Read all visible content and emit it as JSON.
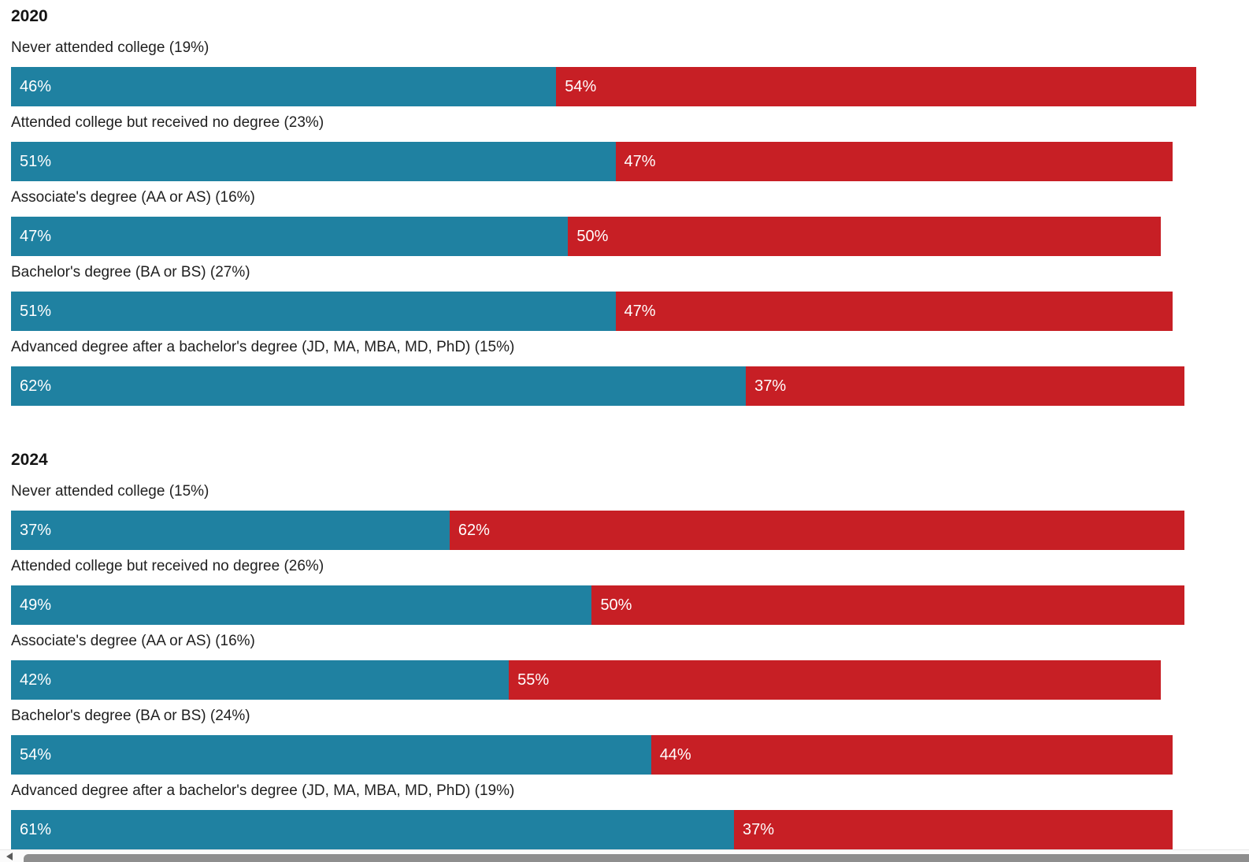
{
  "colors": {
    "blue_bar": "#1f81a1",
    "red_bar": "#c71f25",
    "text": "#1f1f1f",
    "value_text": "#ffffff",
    "scroll_track": "#fbfbfb",
    "scroll_thumb": "#8e8e8e"
  },
  "groups": [
    {
      "year": "2020",
      "rows": [
        {
          "label": "Never attended college (19%)",
          "blue_pct": 46,
          "red_pct": 54,
          "blue_label": "46%",
          "red_label": "54%"
        },
        {
          "label": "Attended college but received no degree (23%)",
          "blue_pct": 51,
          "red_pct": 47,
          "blue_label": "51%",
          "red_label": "47%"
        },
        {
          "label": "Associate's degree (AA or AS) (16%)",
          "blue_pct": 47,
          "red_pct": 50,
          "blue_label": "47%",
          "red_label": "50%"
        },
        {
          "label": "Bachelor's degree (BA or BS) (27%)",
          "blue_pct": 51,
          "red_pct": 47,
          "blue_label": "51%",
          "red_label": "47%"
        },
        {
          "label": "Advanced degree after a bachelor's degree (JD, MA, MBA, MD, PhD) (15%)",
          "blue_pct": 62,
          "red_pct": 37,
          "blue_label": "62%",
          "red_label": "37%"
        }
      ]
    },
    {
      "year": "2024",
      "rows": [
        {
          "label": "Never attended college (15%)",
          "blue_pct": 37,
          "red_pct": 62,
          "blue_label": "37%",
          "red_label": "62%"
        },
        {
          "label": "Attended college but received no degree (26%)",
          "blue_pct": 49,
          "red_pct": 50,
          "blue_label": "49%",
          "red_label": "50%"
        },
        {
          "label": "Associate's degree (AA or AS) (16%)",
          "blue_pct": 42,
          "red_pct": 55,
          "blue_label": "42%",
          "red_label": "55%"
        },
        {
          "label": "Bachelor's degree (BA or BS) (24%)",
          "blue_pct": 54,
          "red_pct": 44,
          "blue_label": "54%",
          "red_label": "44%"
        },
        {
          "label": "Advanced degree after a bachelor's degree (JD, MA, MBA, MD, PhD) (19%)",
          "blue_pct": 61,
          "red_pct": 37,
          "blue_label": "61%",
          "red_label": "37%"
        }
      ]
    }
  ],
  "chart_data": [
    {
      "type": "bar",
      "orientation": "horizontal",
      "stacked": true,
      "title": "2020",
      "categories": [
        "Never attended college (19%)",
        "Attended college but received no degree (23%)",
        "Associate's degree (AA or AS) (16%)",
        "Bachelor's degree (BA or BS) (27%)",
        "Advanced degree after a bachelor's degree (JD, MA, MBA, MD, PhD) (15%)"
      ],
      "series": [
        {
          "name": "blue",
          "color": "#1f81a1",
          "values": [
            46,
            51,
            47,
            51,
            62
          ]
        },
        {
          "name": "red",
          "color": "#c71f25",
          "values": [
            54,
            47,
            50,
            47,
            37
          ]
        }
      ],
      "xlim": [
        0,
        100
      ],
      "grid": false,
      "legend": "none",
      "value_labels": "inside-start of each segment, white text with % suffix"
    },
    {
      "type": "bar",
      "orientation": "horizontal",
      "stacked": true,
      "title": "2024",
      "categories": [
        "Never attended college (15%)",
        "Attended college but received no degree (26%)",
        "Associate's degree (AA or AS) (16%)",
        "Bachelor's degree (BA or BS) (24%)",
        "Advanced degree after a bachelor's degree (JD, MA, MBA, MD, PhD) (19%)"
      ],
      "series": [
        {
          "name": "blue",
          "color": "#1f81a1",
          "values": [
            37,
            49,
            42,
            54,
            61
          ]
        },
        {
          "name": "red",
          "color": "#c71f25",
          "values": [
            62,
            50,
            55,
            44,
            37
          ]
        }
      ],
      "xlim": [
        0,
        100
      ],
      "grid": false,
      "legend": "none",
      "value_labels": "inside-start of each segment, white text with % suffix"
    }
  ]
}
